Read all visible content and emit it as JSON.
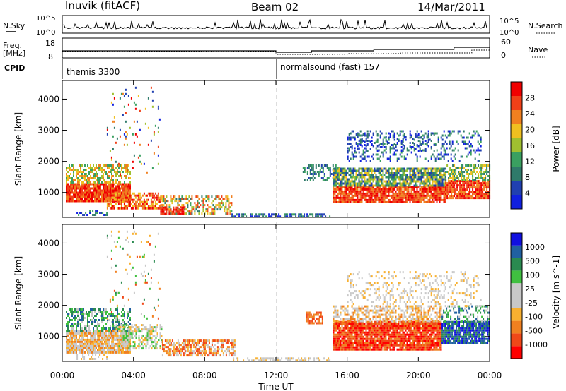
{
  "header": {
    "station": "Inuvik (fitACF)",
    "beam": "Beam 02",
    "date": "14/Mar/2011"
  },
  "top_panel": {
    "left_label": "N.Sky",
    "left_ticks": [
      "10^5",
      "10^0"
    ],
    "right_label": "N.Search",
    "right_ticks": [
      "10^5",
      "10^0"
    ]
  },
  "freq_panel": {
    "left_label_1": "Freq.",
    "left_label_2": "[MHz]",
    "left_ticks": [
      "18",
      "8"
    ],
    "right_label": "Nave",
    "right_ticks": [
      "60",
      "0"
    ]
  },
  "cpid": {
    "label": "CPID",
    "modes": [
      "themis 3300",
      "normalsound (fast) 157"
    ]
  },
  "colors": {
    "power_scale": [
      "#1020e0",
      "#2040b0",
      "#2f7a6a",
      "#3aa060",
      "#a0c030",
      "#f0c020",
      "#f08020",
      "#f04018",
      "#f00000"
    ],
    "velocity_scale": [
      "#ff0000",
      "#f04818",
      "#f08020",
      "#f8b030",
      "#c8c8c8",
      "#c8c8c8",
      "#40c040",
      "#2a8a50",
      "#2060a0",
      "#1010e0"
    ]
  },
  "chart_data": [
    {
      "type": "heatmap",
      "title": "Power",
      "xlabel": "",
      "ylabel": "Slant Range [km]",
      "ylim": [
        200,
        4600
      ],
      "yticks": [
        "1000",
        "2000",
        "3000",
        "4000"
      ],
      "colorbar_label": "Power [dB]",
      "colorbar_ticks": [
        "4",
        "8",
        "12",
        "16",
        "20",
        "24",
        "28"
      ]
    },
    {
      "type": "heatmap",
      "title": "Velocity",
      "xlabel": "Time UT",
      "ylabel": "Slant Range [km]",
      "ylim": [
        200,
        4600
      ],
      "yticks": [
        "1000",
        "2000",
        "3000",
        "4000"
      ],
      "xticks": [
        "00:00",
        "04:00",
        "08:00",
        "12:00",
        "16:00",
        "20:00",
        "00:00"
      ],
      "colorbar_label": "Velocity [m s^-1]",
      "colorbar_ticks": [
        "1000",
        "500",
        "100",
        "25",
        "-25",
        "-100",
        "-500",
        "-1000"
      ]
    }
  ]
}
